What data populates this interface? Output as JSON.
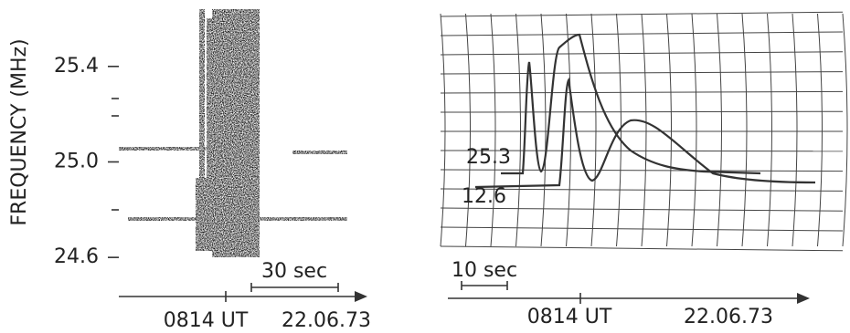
{
  "left_panel": {
    "ylabel": "FREQUENCY (MHz)",
    "ylim": [
      24.57,
      25.64
    ],
    "yticks": [
      25.4,
      {
        "value": 25,
        "label": "25.0"
      },
      24.6
    ],
    "scale_bar": "30 sec",
    "time": "0814 UT",
    "date": "22.06.73"
  },
  "right_panel": {
    "trace_labels": [
      "25.3",
      "12.6"
    ],
    "scale_bar": "10 sec",
    "time": "0814 UT",
    "date": "22.06.73"
  }
}
